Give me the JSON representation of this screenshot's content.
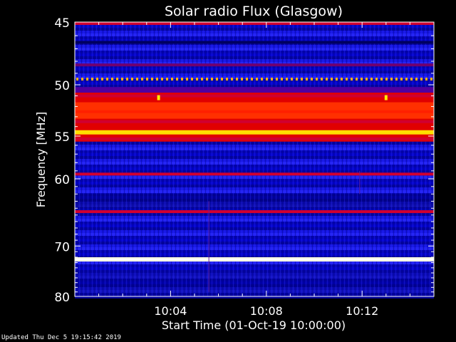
{
  "chart_data": {
    "type": "heatmap",
    "title": "Solar radio Flux (Glasgow)",
    "xlabel": "Start Time (01-Oct-19 10:00:00)",
    "ylabel": "Frequency [MHz]",
    "x_ticks": [
      "10:04",
      "10:08",
      "10:12"
    ],
    "x_tick_minutes": [
      4,
      8,
      12
    ],
    "x_range_minutes": [
      0,
      15
    ],
    "y_ticks": [
      45,
      50,
      55,
      60,
      70,
      80
    ],
    "y_range_mhz": [
      45,
      80
    ],
    "y_scale": "reciprocal",
    "colormap": [
      "#000060",
      "#0000ff",
      "#ff0000",
      "#ffff00",
      "#ffffff"
    ],
    "bands": [
      {
        "freq": 45.1,
        "level": 0.55
      },
      {
        "freq": 46.5,
        "level": 0.18
      },
      {
        "freq": 48.3,
        "level": 0.32
      },
      {
        "freq": 49.5,
        "level": 0.78,
        "style": "dashed"
      },
      {
        "freq": 51.0,
        "level": 0.5
      },
      {
        "freq": 52.5,
        "level": 0.75
      },
      {
        "freq": 53.5,
        "level": 0.6
      },
      {
        "freq": 54.6,
        "level": 0.92
      },
      {
        "freq": 55.3,
        "level": 0.55
      },
      {
        "freq": 59.4,
        "level": 0.5
      },
      {
        "freq": 64.5,
        "level": 0.6
      },
      {
        "freq": 72.4,
        "level": 1.0
      }
    ],
    "bursts": [
      {
        "minute": 3.5,
        "freq": 51.2
      },
      {
        "minute": 13.0,
        "freq": 51.2
      }
    ]
  },
  "footer": "Updated Thu Dec  5 19:15:42 2019"
}
